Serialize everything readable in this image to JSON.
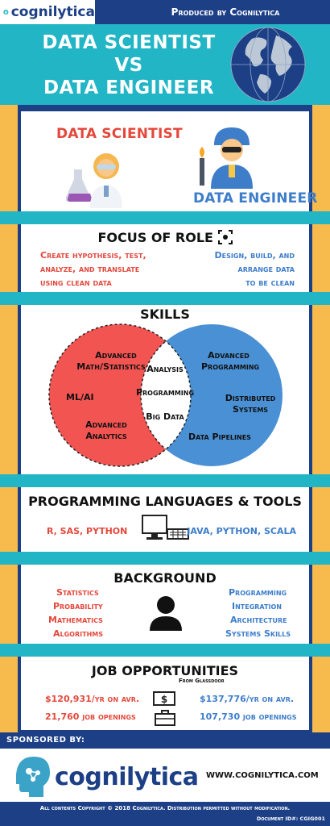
{
  "header": {
    "logo_text": "cognilytica",
    "produced_by": "Produced by Cognilytica",
    "title_lines": [
      "DATA SCIENTIST",
      "VS",
      "DATA ENGINEER"
    ]
  },
  "roles": {
    "scientist_label": "DATA SCIENTIST",
    "engineer_label": "DATA ENGINEER"
  },
  "focus": {
    "heading": "FOCUS OF ROLE",
    "scientist_lines": [
      "Create hypothesis, test,",
      "analyze, and translate",
      "using clean data"
    ],
    "engineer_lines": [
      "Design, build, and",
      "arrange data",
      "to be clean"
    ]
  },
  "skills": {
    "heading": "SKILLS",
    "left": {
      "advanced_math_1": "Advanced",
      "advanced_math_2": "Math/Statistics",
      "ml": "ML/AI",
      "advanced_analytics_1": "Advanced",
      "advanced_analytics_2": "Analytics"
    },
    "center": {
      "analysis": "Analysis",
      "programming": "Programming",
      "big_data": "Big Data"
    },
    "right": {
      "advanced_prog_1": "Advanced",
      "advanced_prog_2": "Programming",
      "distributed_1": "Distributed",
      "distributed_2": "Systems",
      "pipelines": "Data Pipelines"
    },
    "colors": {
      "left": "#f25452",
      "right": "#4a90d4"
    }
  },
  "tools": {
    "heading": "PROGRAMMING LANGUAGES & TOOLS",
    "scientist": "R, SAS, PYTHON",
    "engineer": "JAVA, PYTHON, SCALA"
  },
  "background": {
    "heading": "BACKGROUND",
    "scientist": [
      "Statistics",
      "Probability",
      "Mathematics",
      "Algorithms"
    ],
    "engineer": [
      "Programming",
      "Integration",
      "Architecture",
      "Systems Skills"
    ]
  },
  "jobs": {
    "heading": "JOB OPPORTUNITIES",
    "source": "From Glassdoor",
    "scientist_salary": "$120,931/yr on avr.",
    "scientist_openings": "21,760 job openings",
    "engineer_salary": "$137,776/yr on avr.",
    "engineer_openings": "107,730 job openings"
  },
  "footer": {
    "sponsored_by": "SPONSORED BY:",
    "brand": "cognilytica",
    "website": "WWW.COGNILYTICA.COM",
    "copyright": "All contents Copyright © 2018 Cognilytica. Distribution permitted without modification.",
    "document_id": "Document ID#: CGIG001"
  }
}
